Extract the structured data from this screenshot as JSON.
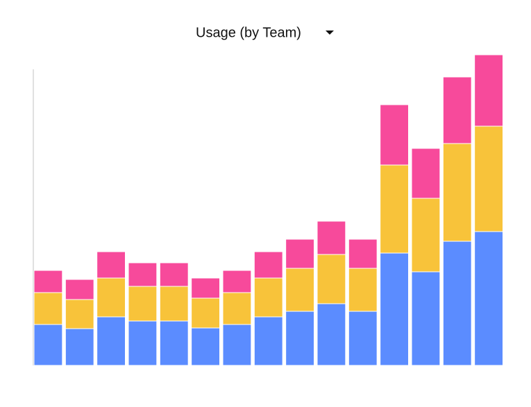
{
  "chart_data": {
    "type": "bar",
    "stacked": true,
    "title": "Usage (by Team)",
    "series": [
      {
        "color": "#5b8cff",
        "values": [
          59,
          53,
          70,
          64,
          64,
          54,
          59,
          70,
          78,
          89,
          78,
          162,
          135,
          179,
          193
        ]
      },
      {
        "color": "#f8c33a",
        "values": [
          46,
          42,
          56,
          50,
          50,
          43,
          46,
          56,
          62,
          71,
          62,
          127,
          106,
          141,
          152
        ]
      },
      {
        "color": "#f74a9b",
        "values": [
          32,
          29,
          38,
          34,
          34,
          29,
          32,
          38,
          42,
          48,
          42,
          87,
          72,
          96,
          103
        ]
      }
    ]
  }
}
